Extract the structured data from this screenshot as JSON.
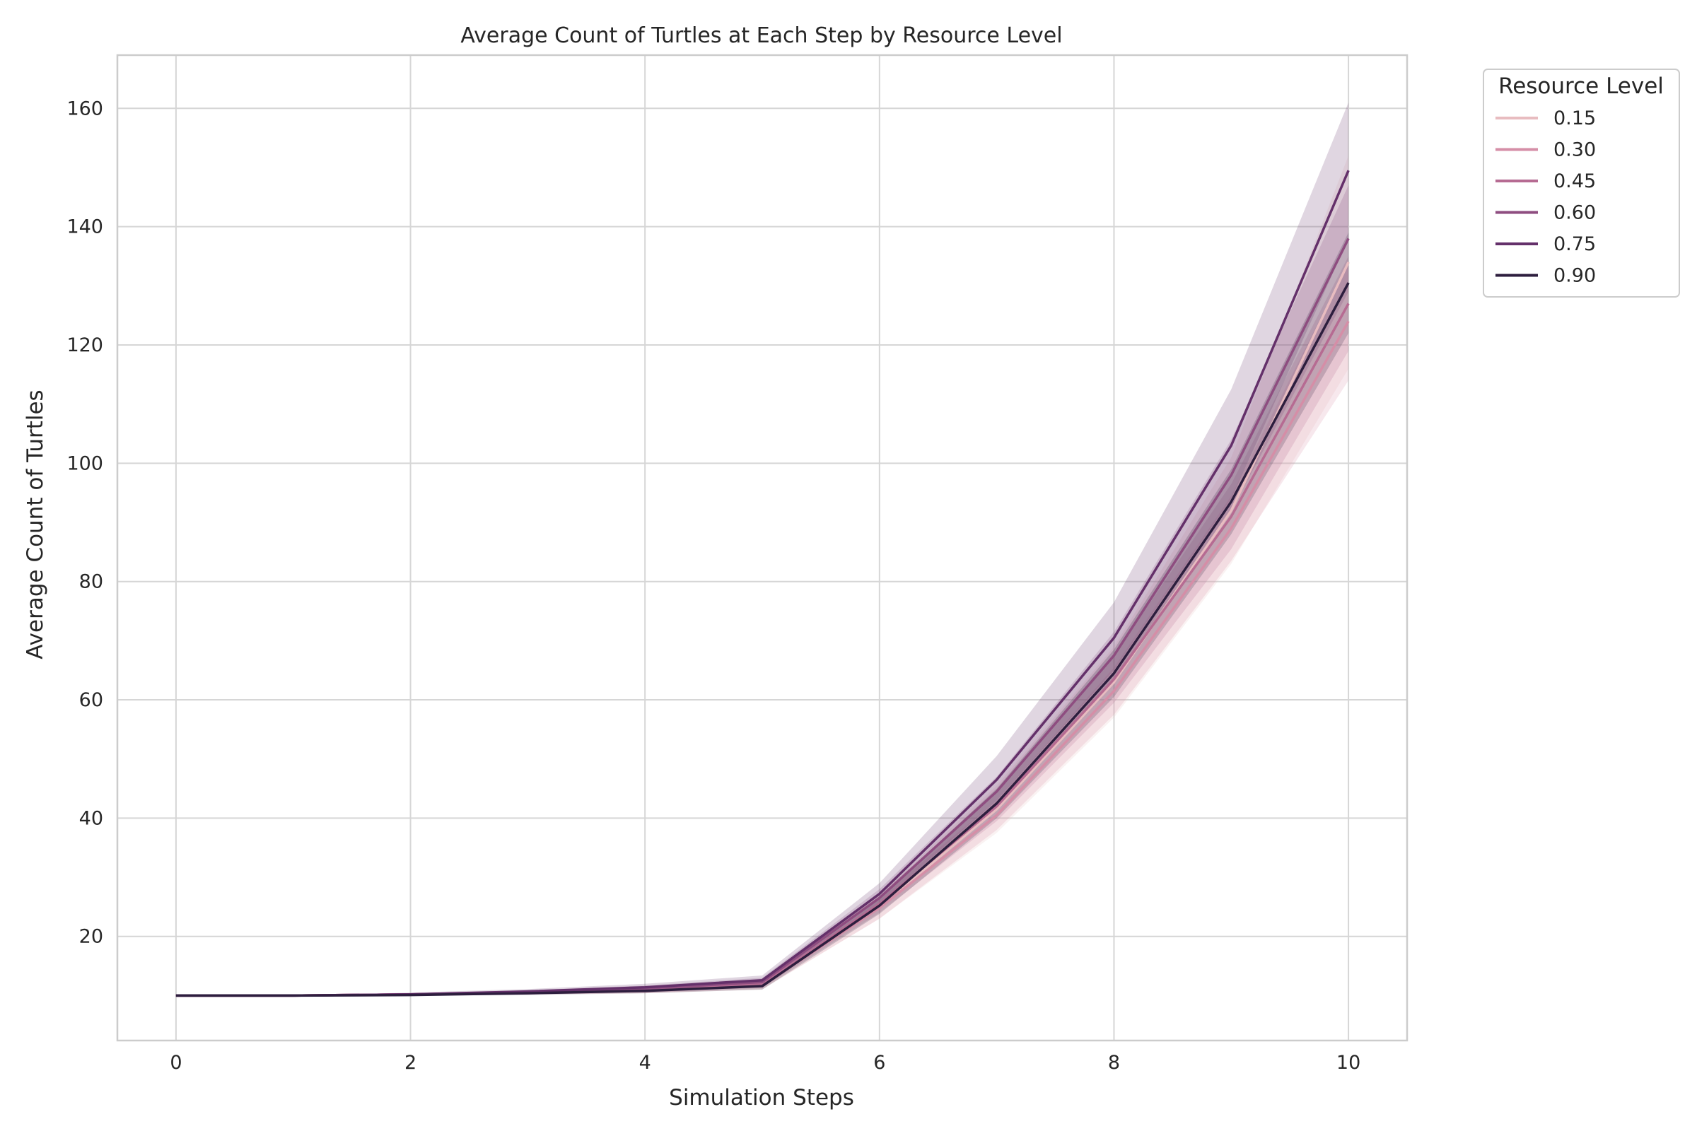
{
  "chart_data": {
    "type": "line",
    "title": "Average Count of Turtles at Each Step by Resource Level",
    "xlabel": "Simulation Steps",
    "ylabel": "Average Count of Turtles",
    "xlim": [
      -0.5,
      10.5
    ],
    "ylim": [
      2.4,
      169
    ],
    "xticks": [
      0,
      2,
      4,
      6,
      8,
      10
    ],
    "xtick_labels": [
      "0",
      "2",
      "4",
      "6",
      "8",
      "10"
    ],
    "yticks": [
      20,
      40,
      60,
      80,
      100,
      120,
      140,
      160
    ],
    "ytick_labels": [
      "20",
      "40",
      "60",
      "80",
      "100",
      "120",
      "140",
      "160"
    ],
    "grid": true,
    "confidence_band": true,
    "legend": {
      "title": "Resource Level",
      "placement": "outside-top-right"
    },
    "x": [
      0,
      1,
      2,
      3,
      4,
      5,
      6,
      7,
      8,
      9,
      10
    ],
    "series": [
      {
        "name": "0.15",
        "color": "#e8bcc0",
        "values": [
          10,
          10,
          10.2,
          10.5,
          10.9,
          11.6,
          25.0,
          41.5,
          63.0,
          92.0,
          134.0
        ],
        "lower": [
          10,
          10,
          10.0,
          10.2,
          10.4,
          11.0,
          23.0,
          37.5,
          57.0,
          83.0,
          116.0
        ],
        "upper": [
          10,
          10,
          10.4,
          10.8,
          11.4,
          12.3,
          27.0,
          45.5,
          69.0,
          101.0,
          152.0
        ]
      },
      {
        "name": "0.30",
        "color": "#d58ea7",
        "values": [
          10,
          10,
          10.2,
          10.5,
          10.9,
          11.7,
          24.8,
          40.5,
          61.5,
          89.0,
          124.0
        ],
        "lower": [
          10,
          10,
          10.0,
          10.2,
          10.4,
          11.1,
          23.0,
          38.0,
          57.5,
          83.5,
          114.0
        ],
        "upper": [
          10,
          10,
          10.4,
          10.8,
          11.4,
          12.3,
          26.6,
          43.0,
          65.5,
          94.5,
          134.0
        ]
      },
      {
        "name": "0.45",
        "color": "#b66b92",
        "values": [
          10,
          10,
          10.2,
          10.5,
          11.0,
          11.9,
          25.5,
          42.0,
          63.5,
          91.0,
          127.0
        ],
        "lower": [
          10,
          10,
          10.0,
          10.2,
          10.5,
          11.3,
          24.0,
          39.5,
          59.5,
          85.5,
          119.0
        ],
        "upper": [
          10,
          10,
          10.4,
          10.8,
          11.5,
          12.5,
          27.0,
          44.5,
          67.5,
          96.5,
          135.0
        ]
      },
      {
        "name": "0.60",
        "color": "#8e4d80",
        "values": [
          10,
          10,
          10.2,
          10.6,
          11.2,
          12.3,
          26.5,
          44.5,
          67.5,
          98.0,
          138.0
        ],
        "lower": [
          10,
          10,
          10.0,
          10.3,
          10.7,
          11.6,
          25.0,
          42.0,
          63.5,
          92.0,
          129.0
        ],
        "upper": [
          10,
          10,
          10.4,
          10.9,
          11.7,
          13.0,
          28.0,
          47.0,
          71.5,
          104.0,
          147.0
        ]
      },
      {
        "name": "0.75",
        "color": "#64306a",
        "values": [
          10,
          10,
          10.2,
          10.7,
          11.4,
          12.6,
          27.2,
          46.5,
          70.5,
          103.0,
          149.5
        ],
        "lower": [
          10,
          10,
          10.0,
          10.3,
          10.8,
          11.8,
          25.5,
          43.0,
          65.0,
          94.0,
          138.0
        ],
        "upper": [
          10,
          10,
          10.5,
          11.1,
          12.0,
          13.4,
          29.0,
          50.5,
          76.5,
          112.5,
          161.0
        ]
      },
      {
        "name": "0.90",
        "color": "#2d1e3e",
        "values": [
          10,
          10,
          10.1,
          10.4,
          10.8,
          11.6,
          25.2,
          42.5,
          64.5,
          93.5,
          130.5
        ],
        "lower": [
          10,
          10,
          10.0,
          10.1,
          10.4,
          11.0,
          23.8,
          40.0,
          60.5,
          88.0,
          122.0
        ],
        "upper": [
          10,
          10,
          10.3,
          10.7,
          11.3,
          12.3,
          26.6,
          45.0,
          68.5,
          99.0,
          139.0
        ]
      }
    ]
  }
}
